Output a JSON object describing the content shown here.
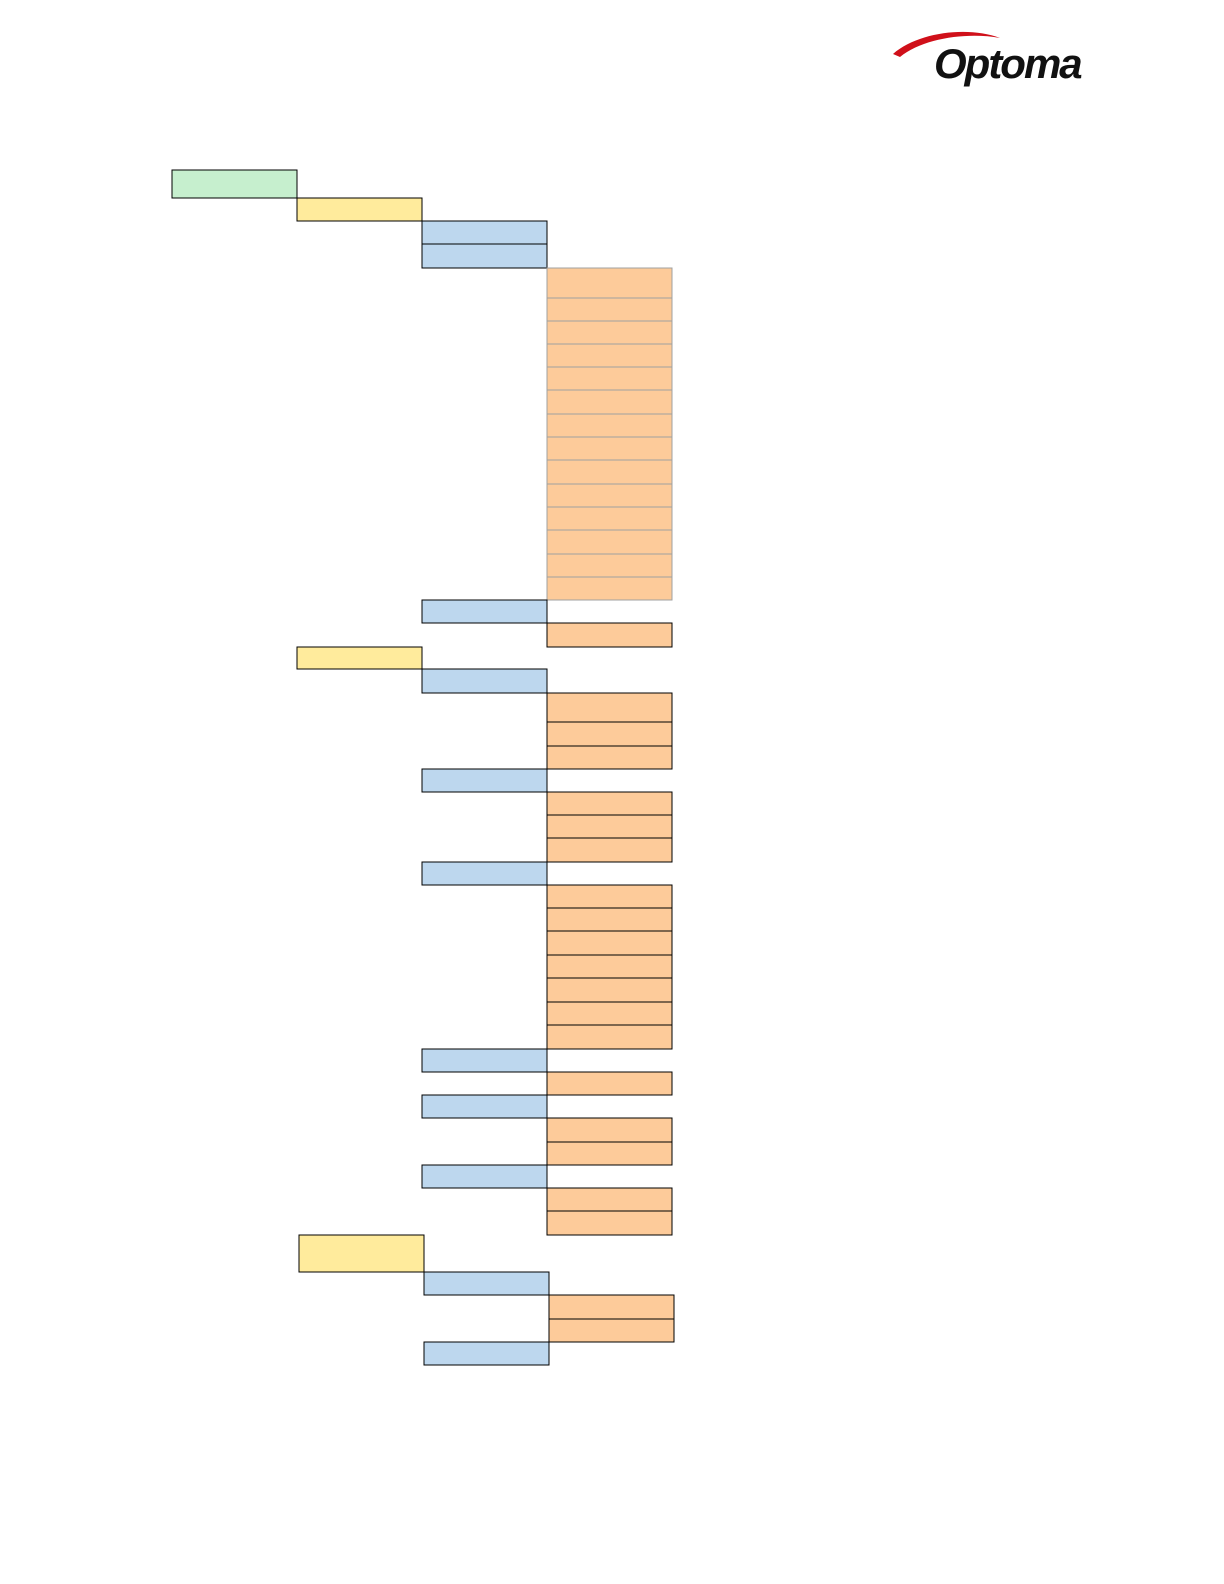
{
  "header": {
    "logo": "Optoma"
  }
}
